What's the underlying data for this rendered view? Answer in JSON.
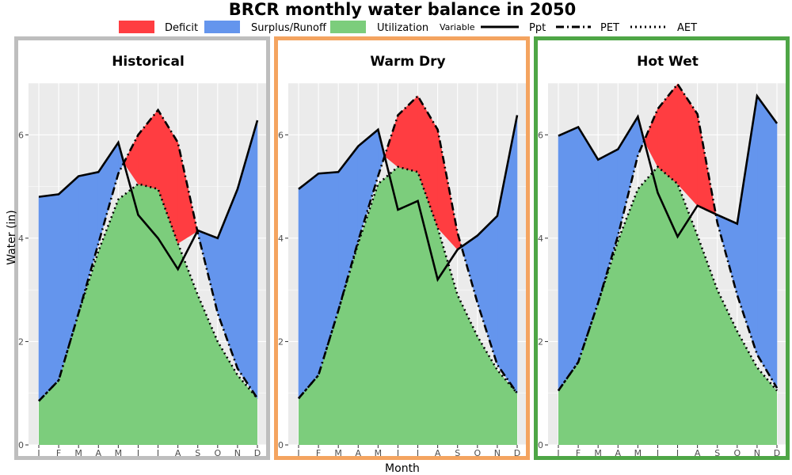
{
  "chart_data": {
    "type": "area",
    "title": "BRCR monthly water balance in 2050",
    "xlabel": "Month",
    "ylabel": "Water (in)",
    "ylim": [
      0,
      7
    ],
    "yticks": [
      0,
      2,
      4,
      6
    ],
    "months": [
      "J",
      "F",
      "M",
      "A",
      "M",
      "J",
      "J",
      "A",
      "S",
      "O",
      "N",
      "D"
    ],
    "grid": true,
    "legend_position": "top",
    "legend": {
      "fill": [
        {
          "label": "Deficit",
          "color": "#ff3d41"
        },
        {
          "label": "Surplus/Runoff",
          "color": "#6495ed"
        },
        {
          "label": "Utilization",
          "color": "#7ccd7c"
        }
      ],
      "variable_title": "Variable",
      "lines": [
        {
          "label": "Ppt",
          "dash": "solid"
        },
        {
          "label": "PET",
          "dash": "dashdot"
        },
        {
          "label": "AET",
          "dash": "dotted"
        }
      ]
    },
    "panels": [
      {
        "name": "Historical",
        "border_color": "#bebebe",
        "ppt": [
          4.8,
          4.85,
          5.2,
          5.28,
          5.85,
          4.45,
          4.0,
          3.4,
          4.15,
          4.0,
          4.95,
          6.28
        ],
        "pet": [
          0.85,
          1.25,
          2.55,
          3.9,
          5.25,
          6.0,
          6.48,
          5.85,
          4.1,
          2.55,
          1.48,
          0.9
        ],
        "aet": [
          0.85,
          1.25,
          2.55,
          3.75,
          4.75,
          5.05,
          4.95,
          3.9,
          2.9,
          2.0,
          1.35,
          0.9
        ]
      },
      {
        "name": "Warm Dry",
        "border_color": "#f4a460",
        "ppt": [
          4.95,
          5.25,
          5.28,
          5.78,
          6.1,
          4.55,
          4.72,
          3.2,
          3.78,
          4.05,
          4.43,
          6.38
        ],
        "pet": [
          0.9,
          1.35,
          2.6,
          3.95,
          5.2,
          6.38,
          6.75,
          6.1,
          4.1,
          2.75,
          1.55,
          1.0
        ],
        "aet": [
          0.9,
          1.35,
          2.6,
          3.9,
          5.05,
          5.38,
          5.28,
          4.2,
          2.9,
          2.1,
          1.45,
          1.0
        ]
      },
      {
        "name": "Hot Wet",
        "border_color": "#4ea646",
        "ppt": [
          5.98,
          6.15,
          5.52,
          5.72,
          6.35,
          4.88,
          4.03,
          4.63,
          4.45,
          4.28,
          6.75,
          6.22
        ],
        "pet": [
          1.05,
          1.6,
          2.75,
          4.05,
          5.6,
          6.5,
          6.98,
          6.4,
          4.3,
          2.9,
          1.75,
          1.1
        ],
        "aet": [
          1.05,
          1.6,
          2.75,
          3.95,
          4.95,
          5.38,
          5.05,
          4.05,
          3.0,
          2.2,
          1.5,
          1.05
        ]
      }
    ]
  }
}
